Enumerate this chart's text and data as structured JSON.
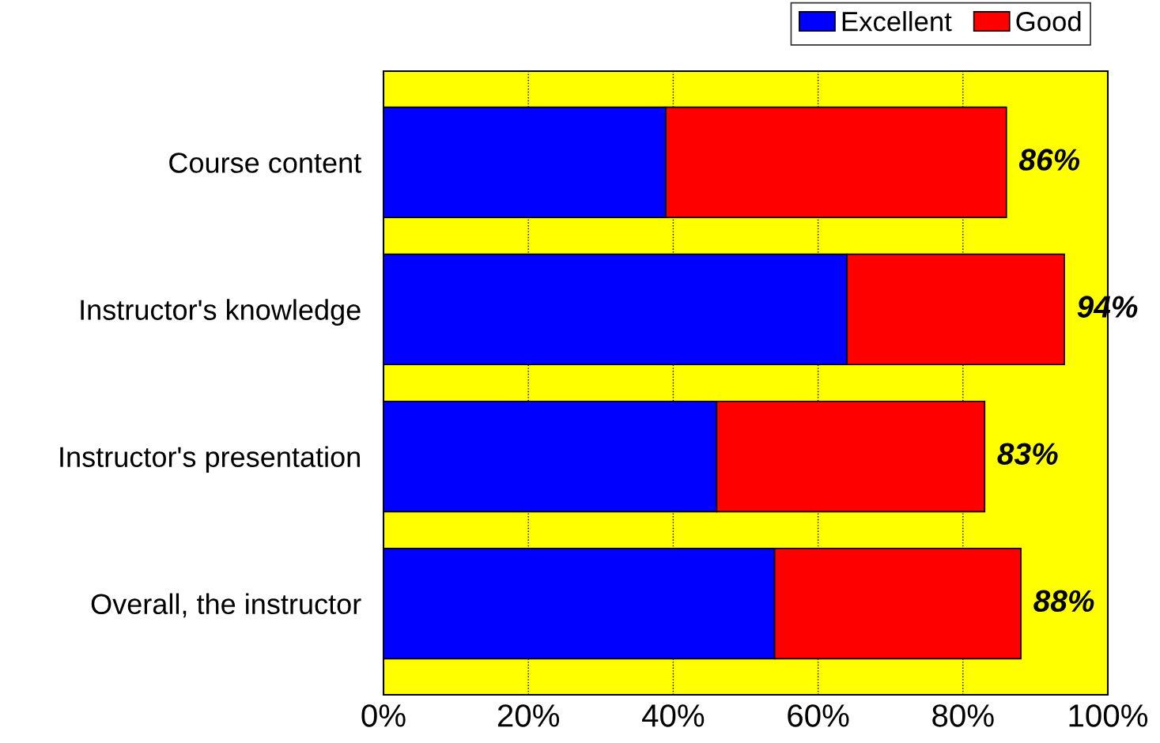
{
  "chart_data": {
    "type": "bar",
    "orientation": "horizontal",
    "stacked": true,
    "categories": [
      "Course content",
      "Instructor's knowledge",
      "Instructor's presentation",
      "Overall, the instructor"
    ],
    "series": [
      {
        "name": "Excellent",
        "color": "#0000ff",
        "values": [
          39,
          64,
          46,
          54
        ]
      },
      {
        "name": "Good",
        "color": "#ff0000",
        "values": [
          47,
          30,
          37,
          34
        ]
      }
    ],
    "totals": [
      "86%",
      "94%",
      "83%",
      "88%"
    ],
    "xlim": [
      0,
      100
    ],
    "xticks": [
      {
        "value": 0,
        "label": "0%"
      },
      {
        "value": 20,
        "label": "20%"
      },
      {
        "value": 40,
        "label": "40%"
      },
      {
        "value": 60,
        "label": "60%"
      },
      {
        "value": 80,
        "label": "80%"
      },
      {
        "value": 100,
        "label": "100%"
      }
    ],
    "bands": [
      {
        "axis": "x",
        "from": 0,
        "to": 100,
        "color": "#ffff00"
      }
    ],
    "grid": "x",
    "legend": "top right"
  }
}
